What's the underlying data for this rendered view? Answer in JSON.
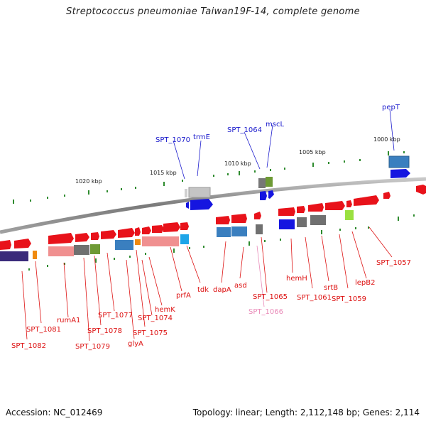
{
  "title": "Streptococcus pneumoniae Taiwan19F-14, complete genome",
  "footer": {
    "accession_label": "Accession:",
    "accession": "NC_012469",
    "topology_label": "Topology:",
    "topology": "linear;",
    "length_label": "Length:",
    "length": "2,112,148 bp;",
    "genes_label": "Genes:",
    "genes": "2,114"
  },
  "colors": {
    "red_gene": "#e8121a",
    "blue_label": "#1a1acc",
    "red_label": "#dd1111",
    "pink_label": "#e98ab8",
    "backbone": "#808080",
    "tick": "#2e8b2e"
  },
  "scale_labels": [
    "1020 kbp",
    "1015 kbp",
    "1010 kbp",
    "1005 kbp",
    "1000 kbp"
  ],
  "top_labels": [
    "SPT_1070",
    "trmE",
    "SPT_1064",
    "mscL",
    "pepT"
  ],
  "bottom_labels": [
    "SPT_1082",
    "SPT_1081",
    "rumA1",
    "SPT_1079",
    "SPT_1078",
    "SPT_1077",
    "glyA",
    "SPT_1075",
    "SPT_1074",
    "hemK",
    "prfA",
    "tdk",
    "dapA",
    "asd",
    "SPT_1065",
    "SPT_1066",
    "hemH",
    "SPT_1061",
    "srtB",
    "SPT_1059",
    "lepB2",
    "SPT_1057"
  ]
}
